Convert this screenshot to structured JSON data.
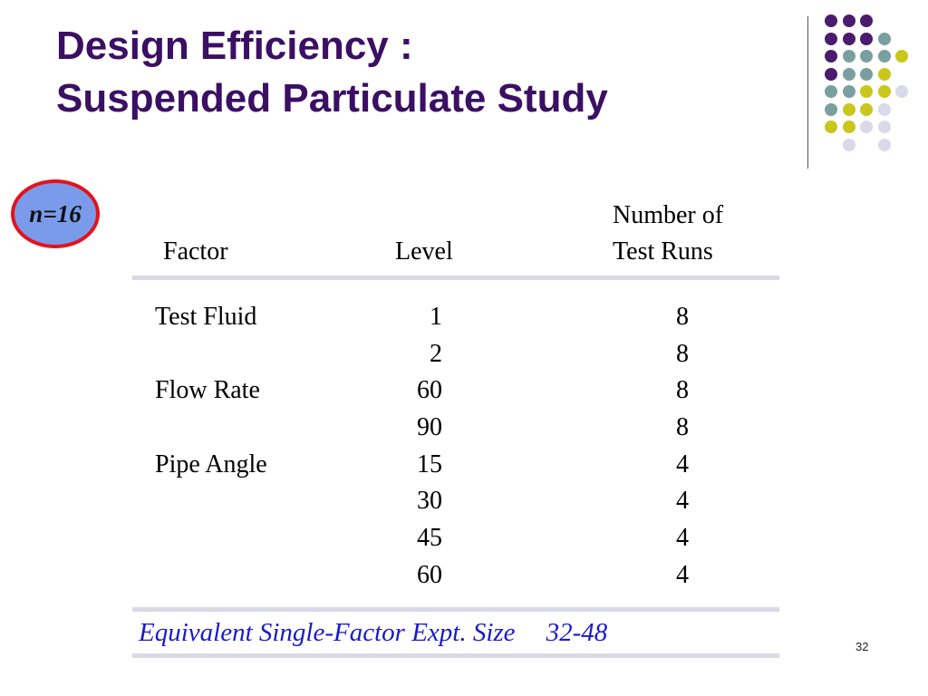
{
  "title": {
    "line1": "Design Efficiency :",
    "line2": "Suspended Particulate Study"
  },
  "badge": {
    "label": "n=16",
    "fill": "#7a9bea",
    "border": "#e5121b"
  },
  "table": {
    "headers": {
      "factor": "Factor",
      "level": "Level",
      "runs_line1": "Number of",
      "runs_line2": "Test Runs"
    },
    "rows": [
      {
        "factor": "Test Fluid",
        "level": "1",
        "runs": "8"
      },
      {
        "factor": "",
        "level": "2",
        "runs": "8"
      },
      {
        "factor": "Flow Rate",
        "level": "60",
        "runs": "8"
      },
      {
        "factor": "",
        "level": "90",
        "runs": "8"
      },
      {
        "factor": "Pipe Angle",
        "level": "15",
        "runs": "4"
      },
      {
        "factor": "",
        "level": "30",
        "runs": "4"
      },
      {
        "factor": "",
        "level": "45",
        "runs": "4"
      },
      {
        "factor": "",
        "level": "60",
        "runs": "4"
      }
    ],
    "summary": {
      "label": "Equivalent Single-Factor Expt. Size",
      "value": "32-48"
    }
  },
  "page_number": "32",
  "decoration": {
    "colors": {
      "purple": "#4b1b6e",
      "teal": "#7a9fa0",
      "olive": "#c9c71c",
      "lavender": "#d9d9ea"
    }
  }
}
